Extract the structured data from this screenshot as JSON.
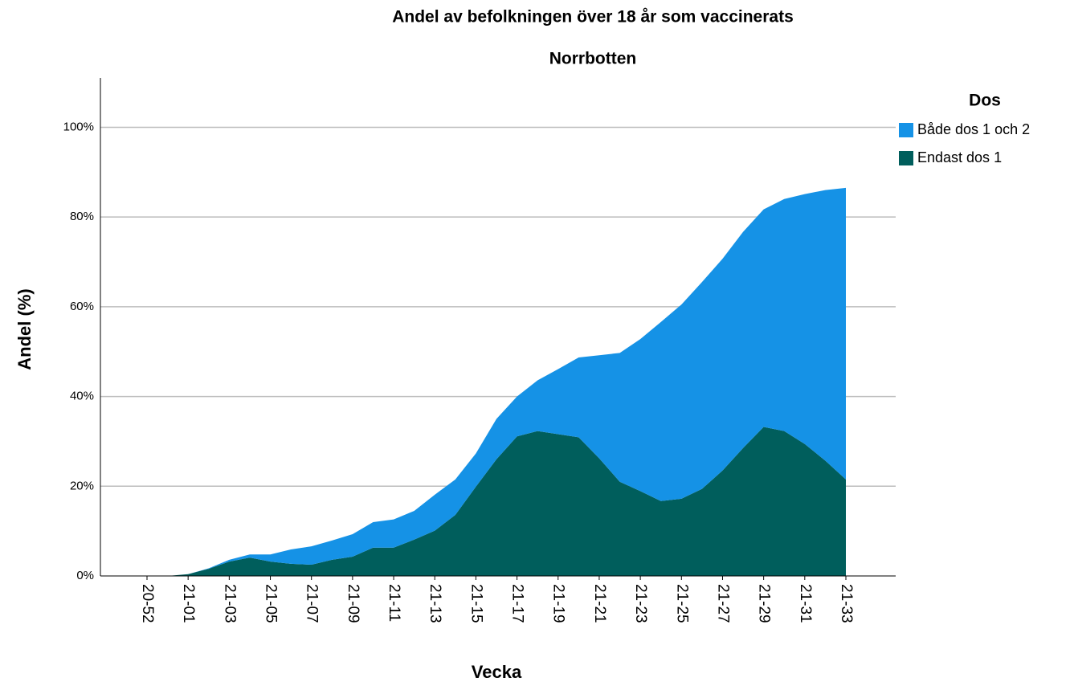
{
  "chart_data": {
    "type": "stacked_area",
    "title": "Andel av befolkningen över 18 år som vaccinerats",
    "subtitle": "Norrbotten",
    "x_label": "Vecka",
    "y_label": "Andel (%)",
    "legend_title": "Dos",
    "legend_position": "right",
    "grid": true,
    "categories": [
      "20-52",
      null,
      "21-01",
      null,
      "21-03",
      null,
      "21-05",
      null,
      "21-07",
      null,
      "21-09",
      null,
      "21-11",
      null,
      "21-13",
      null,
      "21-15",
      null,
      "21-17",
      null,
      "21-19",
      null,
      "21-21",
      null,
      "21-23",
      null,
      "21-25",
      null,
      "21-27",
      null,
      "21-29",
      null,
      "21-31",
      null,
      "21-33"
    ],
    "series": [
      {
        "name": "Både dos 1 och 2",
        "color": "#1592e6",
        "values": [
          0,
          0,
          0,
          0.1,
          0.4,
          0.7,
          1.6,
          3.2,
          4.1,
          4.3,
          5.0,
          5.7,
          6.3,
          6.4,
          8.0,
          7.9,
          7.4,
          9.0,
          8.9,
          11.3,
          14.5,
          17.8,
          23.0,
          28.7,
          33.9,
          39.9,
          43.3,
          46.1,
          47.2,
          48.2,
          48.5,
          51.7,
          55.7,
          60.3,
          65.0
        ]
      },
      {
        "name": "Endast dos 1",
        "color": "#005e5c",
        "values": [
          0,
          0,
          0.4,
          1.6,
          3.2,
          4.1,
          3.2,
          2.7,
          2.5,
          3.6,
          4.3,
          6.3,
          6.3,
          8.1,
          10.1,
          13.6,
          19.9,
          26.0,
          31.1,
          32.3,
          31.6,
          30.9,
          26.2,
          21.0,
          18.9,
          16.7,
          17.2,
          19.4,
          23.5,
          28.5,
          33.2,
          32.3,
          29.4,
          25.7,
          21.5
        ]
      }
    ],
    "ylim": [
      0,
      111
    ],
    "yticks": [
      {
        "value": 0,
        "label": "0%"
      },
      {
        "value": 20,
        "label": "20%"
      },
      {
        "value": 40,
        "label": "40%"
      },
      {
        "value": 60,
        "label": "60%"
      },
      {
        "value": 80,
        "label": "80%"
      },
      {
        "value": 100,
        "label": "100%"
      }
    ]
  }
}
